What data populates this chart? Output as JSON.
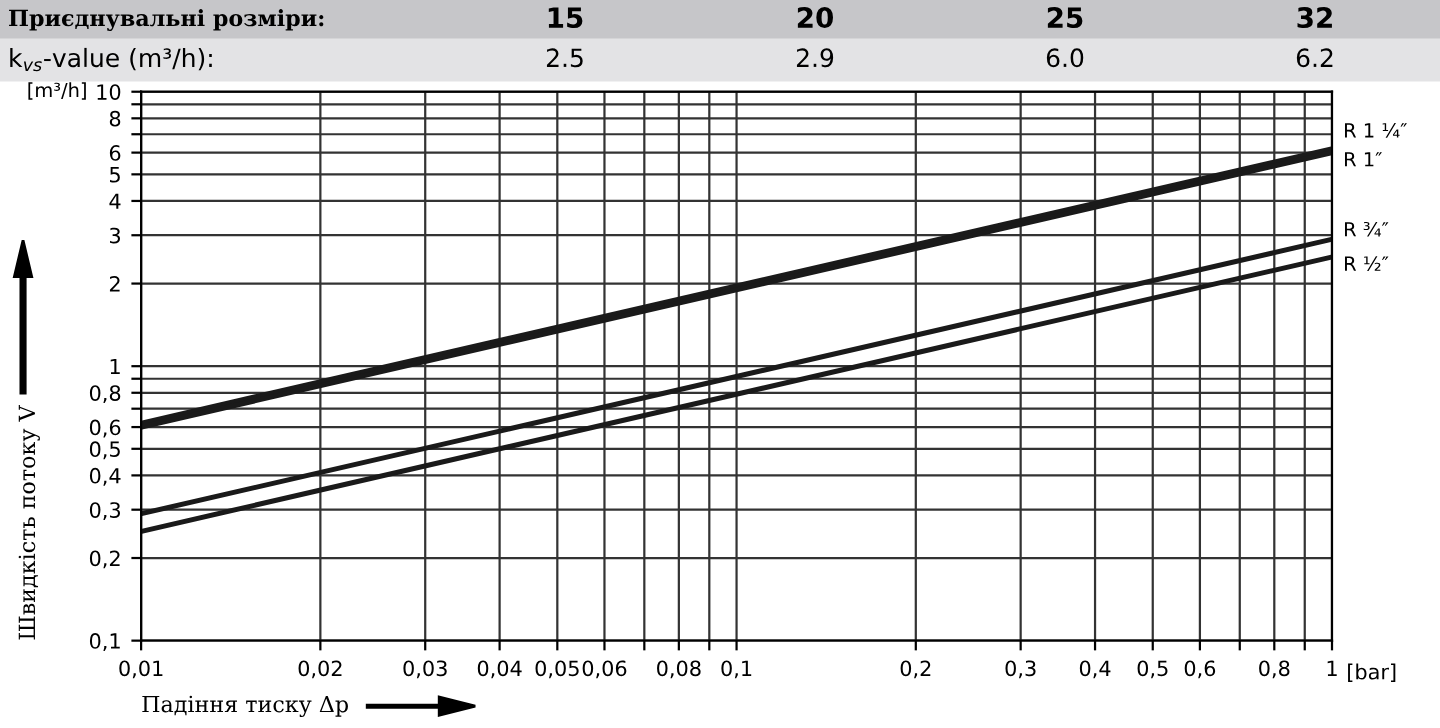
{
  "chart_data": {
    "type": "line",
    "xlabel": "Падіння тиску Δp",
    "ylabel": "Швидкість потоку V",
    "annotations": [
      "Приєднувальні розміри:",
      "15",
      "20",
      "25",
      "32",
      "k$_{vs}$-value (m³/h):",
      "2.5",
      "2.9",
      "6.0",
      "6.2",
      "[m³/h]",
      "[bar]"
    ],
    "x": [
      0.01,
      1
    ],
    "series": [
      {
        "name": "R 1 ¼″",
        "color": "#1a1a1a",
        "values": [
          0.62,
          6.2
        ]
      },
      {
        "name": "R 1″",
        "color": "#1a1a1a",
        "values": [
          0.6,
          6.0
        ]
      },
      {
        "name": "R ¾″",
        "color": "#1a1a1a",
        "values": [
          0.29,
          2.9
        ]
      },
      {
        "name": "R ½″",
        "color": "#1a1a1a",
        "values": [
          0.25,
          2.5
        ]
      }
    ],
    "log": "xy",
    "xlim": [
      0.01,
      1
    ],
    "ylim": [
      0.1,
      10
    ],
    "xticks": [
      {
        "value": 0.01,
        "label": "0,01"
      },
      {
        "value": 0.02,
        "label": "0,02"
      },
      {
        "value": 0.03,
        "label": "0,03"
      },
      {
        "value": 0.04,
        "label": "0,04"
      },
      {
        "value": 0.05,
        "label": "0,05"
      },
      {
        "value": 0.06,
        "label": "0,06"
      },
      {
        "value": 0.07,
        "label": null
      },
      {
        "value": 0.08,
        "label": "0,08"
      },
      {
        "value": 0.09,
        "label": null
      },
      {
        "value": 0.1,
        "label": "0,1"
      },
      {
        "value": 0.2,
        "label": "0,2"
      },
      {
        "value": 0.3,
        "label": "0,3"
      },
      {
        "value": 0.4,
        "label": "0,4"
      },
      {
        "value": 0.5,
        "label": "0,5"
      },
      {
        "value": 0.6,
        "label": "0,6"
      },
      {
        "value": 0.7,
        "label": null
      },
      {
        "value": 0.8,
        "label": "0,8"
      },
      {
        "value": 0.9,
        "label": null
      },
      1
    ],
    "yticks": [
      {
        "value": 0.1,
        "label": "0,1"
      },
      {
        "value": 0.2,
        "label": "0,2"
      },
      {
        "value": 0.3,
        "label": "0,3"
      },
      {
        "value": 0.4,
        "label": "0,4"
      },
      {
        "value": 0.5,
        "label": "0,5"
      },
      {
        "value": 0.6,
        "label": "0,6"
      },
      {
        "value": 0.7,
        "label": null
      },
      {
        "value": 0.8,
        "label": "0,8"
      },
      {
        "value": 0.9,
        "label": null
      },
      1,
      2,
      3,
      4,
      5,
      6,
      {
        "value": 7,
        "label": null
      },
      8,
      {
        "value": 9,
        "label": null
      },
      10
    ],
    "grid": true,
    "line_style": "solid",
    "marker": "none"
  }
}
